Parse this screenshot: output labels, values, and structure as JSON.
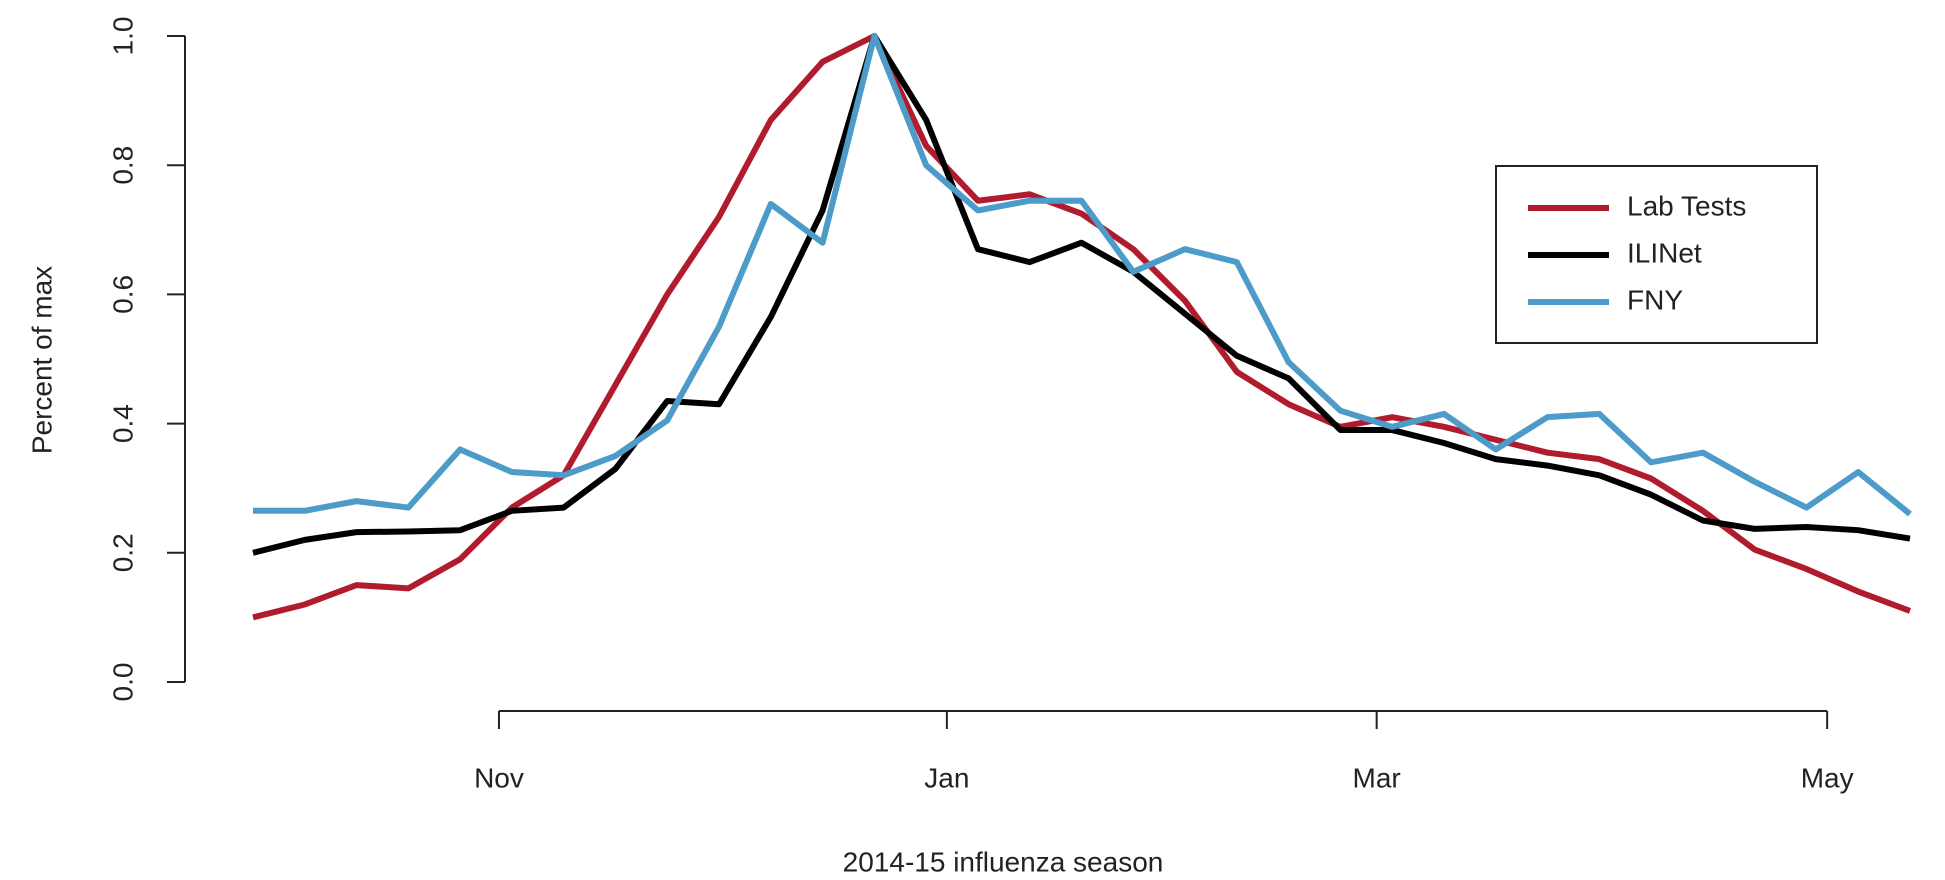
{
  "chart_data": {
    "type": "line",
    "x_label": "2014-15 influenza season",
    "y_label": "Percent of max",
    "x": [
      0,
      1,
      2,
      3,
      4,
      5,
      6,
      7,
      8,
      9,
      10,
      11,
      12,
      13,
      14,
      15,
      16,
      17,
      18,
      19,
      20,
      21,
      22,
      23,
      24,
      25,
      26,
      27,
      28,
      29,
      30,
      31,
      32
    ],
    "xlim": [
      0,
      32
    ],
    "xticks": [
      {
        "value": 4.75,
        "label": "Nov"
      },
      {
        "value": 13.4,
        "label": "Jan"
      },
      {
        "value": 21.7,
        "label": "Mar"
      },
      {
        "value": 30.4,
        "label": "May"
      }
    ],
    "ylim": [
      0,
      1
    ],
    "yticks": [
      {
        "value": 0,
        "label": "0.0"
      },
      0.2,
      0.4,
      0.6,
      0.8,
      {
        "value": 1,
        "label": "1.0"
      }
    ],
    "legend": "top right",
    "series": [
      {
        "name": "Lab Tests",
        "color": "#b01c2e",
        "values": [
          0.1,
          0.12,
          0.15,
          0.145,
          0.19,
          0.27,
          0.32,
          0.46,
          0.6,
          0.72,
          0.87,
          0.96,
          1.0,
          0.83,
          0.745,
          0.755,
          0.725,
          0.67,
          0.59,
          0.48,
          0.43,
          0.395,
          0.41,
          0.395,
          0.375,
          0.355,
          0.345,
          0.315,
          0.265,
          0.205,
          0.175,
          0.14,
          0.11
        ]
      },
      {
        "name": "ILINet",
        "color": "#000000",
        "values": [
          0.2,
          0.22,
          0.232,
          0.233,
          0.235,
          0.265,
          0.27,
          0.33,
          0.435,
          0.43,
          0.565,
          0.73,
          1.0,
          0.87,
          0.67,
          0.65,
          0.68,
          0.635,
          0.57,
          0.505,
          0.47,
          0.39,
          0.39,
          0.37,
          0.345,
          0.335,
          0.32,
          0.29,
          0.25,
          0.237,
          0.24,
          0.235,
          0.222
        ]
      },
      {
        "name": "FNY",
        "color": "#4d9bc9",
        "values": [
          0.265,
          0.265,
          0.28,
          0.27,
          0.36,
          0.325,
          0.32,
          0.35,
          0.405,
          0.55,
          0.74,
          0.68,
          1.0,
          0.8,
          0.73,
          0.745,
          0.745,
          0.635,
          0.67,
          0.65,
          0.495,
          0.42,
          0.395,
          0.415,
          0.36,
          0.41,
          0.415,
          0.34,
          0.355,
          0.31,
          0.27,
          0.325,
          0.26
        ]
      }
    ]
  }
}
